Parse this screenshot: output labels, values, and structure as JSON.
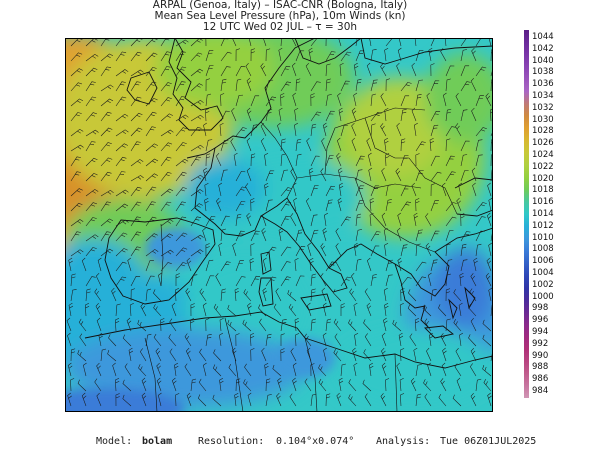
{
  "header": {
    "line1": "ARPAL (Genoa, Italy)  –  ISAC-CNR (Bologna, Italy)",
    "line2": "Mean Sea Level Pressure (hPa), 10m Winds (kn)",
    "line3": "12 UTC Wed 02 JUL  –  τ = 30h"
  },
  "legend": {
    "levels": [
      "1044",
      "1042",
      "1040",
      "1038",
      "1036",
      "1034",
      "1032",
      "1030",
      "1028",
      "1026",
      "1024",
      "1022",
      "1020",
      "1018",
      "1016",
      "1014",
      "1012",
      "1010",
      "1008",
      "1006",
      "1004",
      "1002",
      "1000",
      "998",
      "996",
      "994",
      "992",
      "990",
      "988",
      "986",
      "984"
    ],
    "colors": [
      "#5a1f86",
      "#6a2a9a",
      "#7a36a8",
      "#8a44b4",
      "#9a54bc",
      "#aa66c4",
      "#c07a78",
      "#d08a40",
      "#e0a030",
      "#d8b830",
      "#c8c838",
      "#b0d040",
      "#94d040",
      "#70cc58",
      "#48c8a0",
      "#30c8c8",
      "#28b0d8",
      "#3c98dc",
      "#3a7cd8",
      "#3462c8",
      "#2e48b8",
      "#3036a8",
      "#4a2c9c",
      "#6a2a94",
      "#8a2a8c",
      "#a02a80",
      "#b03078",
      "#b84480",
      "#c05c8c",
      "#c876a0",
      "#d096b4"
    ]
  },
  "watermark": {
    "text": "ARPAL"
  },
  "footer": {
    "model_label": "Model:",
    "model_value": "bolam",
    "resolution_label": "Resolution:",
    "resolution_value": "0.104°x0.074°",
    "analysis_label": "Analysis:",
    "analysis_value": "Tue 06Z01JUL2025"
  }
}
